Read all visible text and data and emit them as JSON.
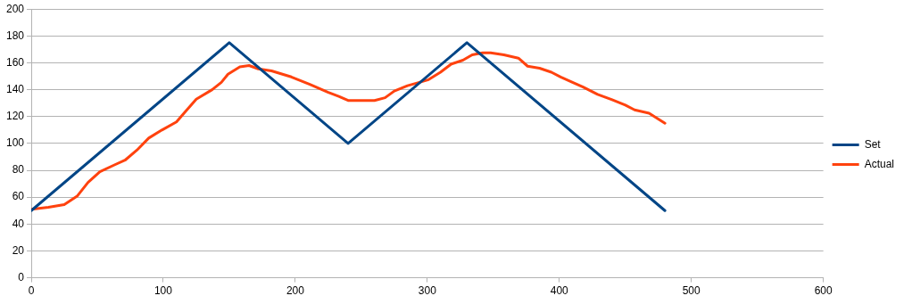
{
  "chart_data": {
    "type": "line",
    "xlim": [
      0,
      600
    ],
    "xticks": [
      0,
      100,
      200,
      300,
      400,
      500,
      600
    ],
    "ylim": [
      0,
      200
    ],
    "yticks": [
      0,
      20,
      40,
      60,
      80,
      100,
      120,
      140,
      160,
      180,
      200
    ],
    "grid": "y",
    "legend": "right",
    "marker": "none",
    "series": [
      {
        "name": "Set",
        "color": "#004586",
        "x": [
          0,
          150,
          240,
          330,
          480
        ],
        "values": [
          50,
          175,
          100,
          175,
          50
        ]
      },
      {
        "name": "Actual",
        "color": "#ff420e",
        "x": [
          0,
          13,
          25,
          35,
          43,
          52,
          63,
          71,
          80,
          89,
          99,
          110,
          117,
          125,
          137,
          144,
          149,
          158,
          165,
          172,
          182,
          197,
          211,
          225,
          233,
          240,
          249,
          260,
          268,
          275,
          285,
          294,
          301,
          310,
          318,
          327,
          334,
          342,
          348,
          358,
          369,
          376,
          385,
          394,
          401,
          410,
          418,
          429,
          440,
          450,
          457,
          468,
          480
        ],
        "values": [
          51,
          52.5,
          54.5,
          61,
          71,
          79,
          84,
          87.5,
          95,
          104,
          110,
          116,
          124,
          133,
          140,
          145.5,
          151.5,
          157,
          158,
          155.5,
          154,
          149.5,
          144,
          138,
          135,
          132,
          132,
          132,
          134,
          139,
          143,
          145.5,
          147.5,
          153,
          159,
          162,
          166,
          167.5,
          167.5,
          166,
          163.5,
          157.5,
          156,
          153,
          149.5,
          145.5,
          142,
          136.5,
          132.5,
          128.5,
          125,
          122.5,
          115
        ]
      }
    ]
  }
}
